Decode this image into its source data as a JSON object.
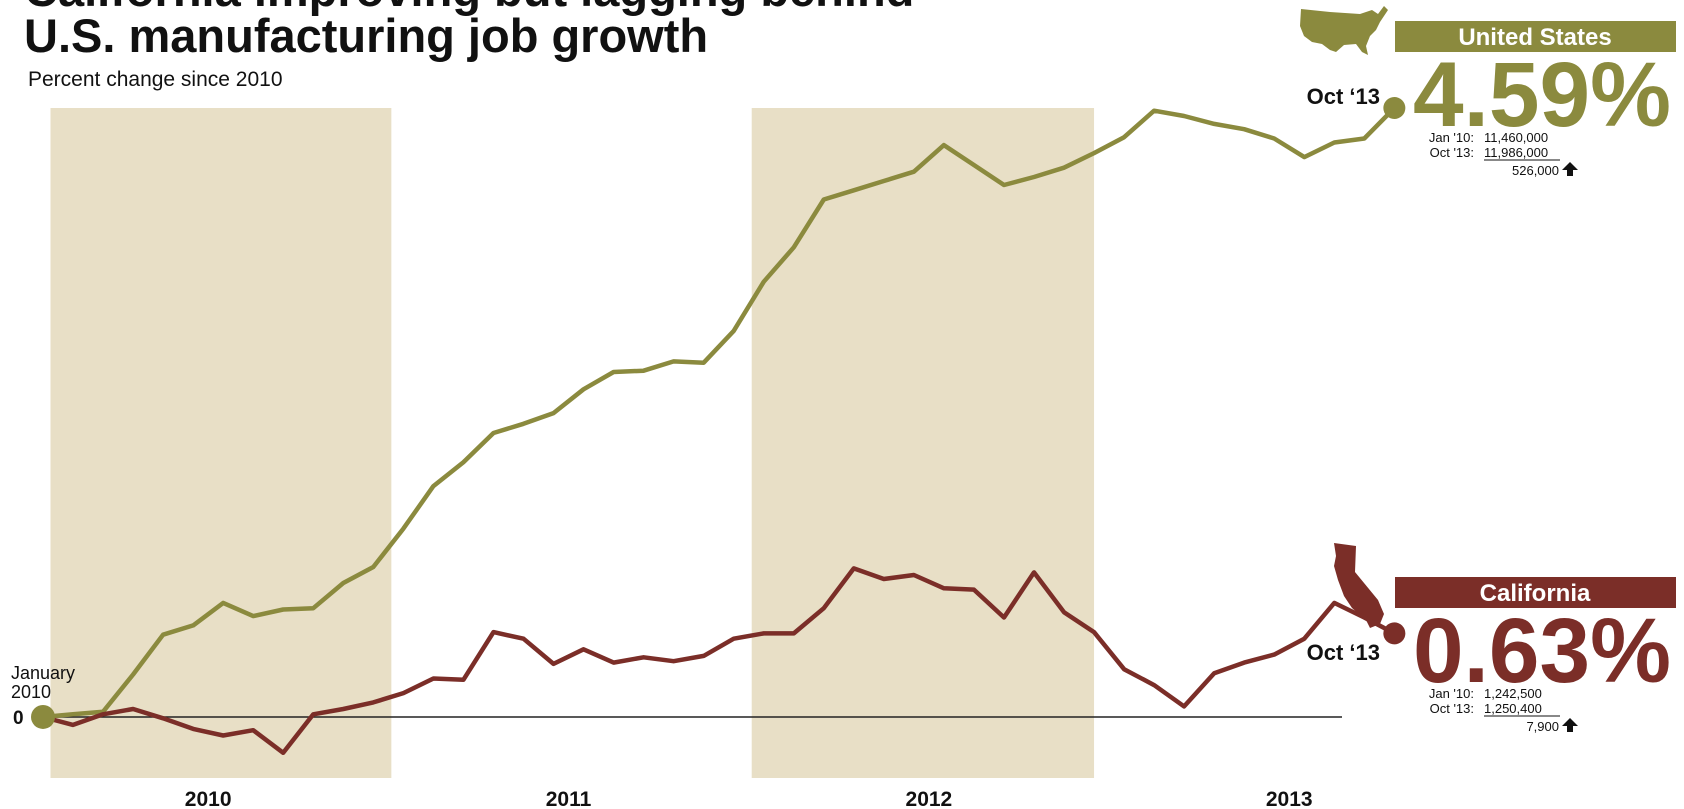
{
  "chart_data": {
    "type": "line",
    "title": [
      "California improving but lagging behind",
      "U.S. manufacturing job growth"
    ],
    "subtitle": "Percent change since 2010",
    "start_label": [
      "January",
      "2010"
    ],
    "categories": [
      null,
      null,
      null,
      null,
      null,
      null,
      "2010",
      null,
      null,
      null,
      null,
      null,
      null,
      null,
      null,
      null,
      null,
      null,
      "2011",
      null,
      null,
      null,
      null,
      null,
      null,
      null,
      null,
      null,
      null,
      null,
      "2012",
      null,
      null,
      null,
      null,
      null,
      null,
      null,
      null,
      null,
      null,
      null,
      "2013",
      null,
      null,
      null
    ],
    "ylim": [
      -0.46,
      4.59
    ],
    "yticks": [
      0
    ],
    "series": [
      {
        "name": "United States",
        "color": "#8b8a3e",
        "values": [
          0,
          0.02,
          0.04,
          0.32,
          0.62,
          0.69,
          0.86,
          0.76,
          0.81,
          0.82,
          1.01,
          1.13,
          1.42,
          1.74,
          1.92,
          2.14,
          2.21,
          2.29,
          2.47,
          2.6,
          2.61,
          2.68,
          2.67,
          2.91,
          3.28,
          3.54,
          3.9,
          3.97,
          4.04,
          4.11,
          4.31,
          4.16,
          4.01,
          4.07,
          4.14,
          4.25,
          4.37,
          4.57,
          4.53,
          4.47,
          4.43,
          4.36,
          4.22,
          4.33,
          4.36,
          4.59
        ],
        "value_labels": [
          null,
          null,
          null,
          null,
          null,
          null,
          null,
          null,
          null,
          null,
          null,
          null,
          null,
          null,
          null,
          null,
          null,
          null,
          null,
          null,
          null,
          null,
          null,
          null,
          null,
          null,
          null,
          null,
          null,
          null,
          null,
          null,
          null,
          null,
          null,
          null,
          null,
          null,
          null,
          null,
          null,
          null,
          null,
          null,
          null,
          "4.59%"
        ],
        "end_date_label": "Oct ‘13",
        "details": [
          [
            "Jan '10:",
            "11,460,000"
          ],
          [
            "Oct '13:",
            "11,986,000"
          ]
        ],
        "change": "526,000"
      },
      {
        "name": "California",
        "color": "#7b2e28",
        "values": [
          0,
          -0.06,
          0.02,
          0.06,
          -0.01,
          -0.09,
          -0.14,
          -0.1,
          -0.27,
          0.02,
          0.06,
          0.11,
          0.18,
          0.29,
          0.28,
          0.64,
          0.59,
          0.4,
          0.51,
          0.41,
          0.45,
          0.42,
          0.46,
          0.59,
          0.63,
          0.63,
          0.82,
          1.12,
          1.04,
          1.07,
          0.97,
          0.96,
          0.75,
          1.09,
          0.79,
          0.64,
          0.36,
          0.24,
          0.08,
          0.33,
          0.41,
          0.47,
          0.59,
          0.86,
          0.75,
          0.63
        ],
        "value_labels": [
          null,
          null,
          null,
          null,
          null,
          null,
          null,
          null,
          null,
          null,
          null,
          null,
          null,
          null,
          null,
          null,
          null,
          null,
          null,
          null,
          null,
          null,
          null,
          null,
          null,
          null,
          null,
          null,
          null,
          null,
          null,
          null,
          null,
          null,
          null,
          null,
          null,
          null,
          null,
          null,
          null,
          null,
          null,
          null,
          null,
          "0.63%"
        ],
        "end_date_label": "Oct ‘13",
        "details": [
          [
            "Jan '10:",
            "1,242,500"
          ],
          [
            "Oct '13:",
            "1,250,400"
          ]
        ],
        "change": "7,900"
      }
    ]
  }
}
